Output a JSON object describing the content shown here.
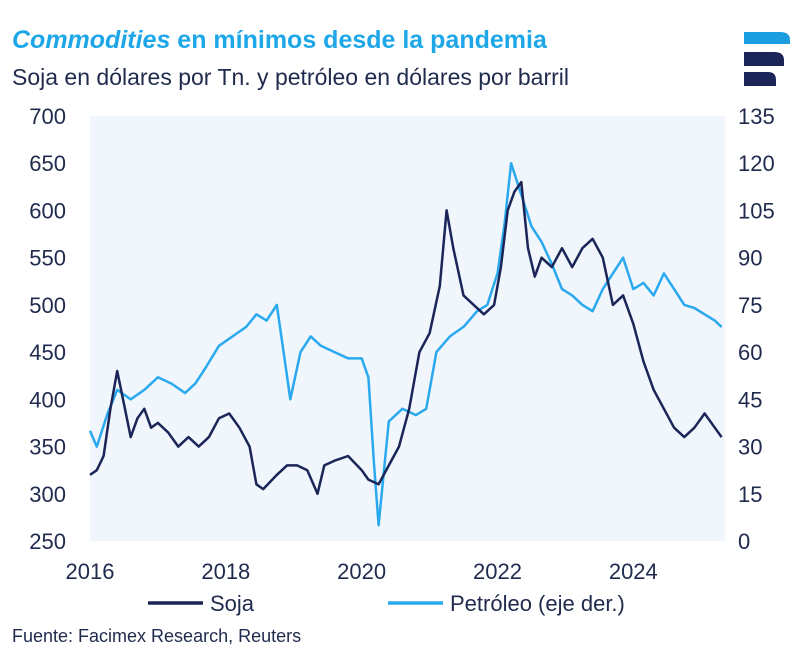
{
  "header": {
    "title_em": "Commodities",
    "title_rest": " en mínimos desde la pandemia",
    "subtitle": "Soja en dólares por Tn. y petróleo en dólares por barril"
  },
  "footer": {
    "source": "Fuente: Facimex Research, Reuters"
  },
  "logo": {
    "icon": "facimex-logo-icon"
  },
  "colors": {
    "soja": "#1b2557",
    "petroleo": "#2aa9ef",
    "plot_bg": "#f0f6fc",
    "text": "#1f2a4d"
  },
  "chart_data": {
    "type": "line",
    "title": "Commodities en mínimos desde la pandemia",
    "subtitle": "Soja en dólares por Tn. y petróleo en dólares por barril",
    "xlim": [
      2016,
      2025.35
    ],
    "x_ticks": [
      2016,
      2018,
      2020,
      2022,
      2024
    ],
    "x_tick_labels": [
      "2016",
      "2018",
      "2020",
      "2022",
      "2024"
    ],
    "y_left": {
      "range": [
        250,
        700
      ],
      "ticks": [
        250,
        300,
        350,
        400,
        450,
        500,
        550,
        600,
        650,
        700
      ],
      "tick_labels": [
        "250",
        "300",
        "350",
        "400",
        "450",
        "500",
        "550",
        "600",
        "650",
        "700"
      ]
    },
    "y_right": {
      "range": [
        0,
        135
      ],
      "ticks": [
        0,
        15,
        30,
        45,
        60,
        75,
        90,
        105,
        120,
        135
      ],
      "tick_labels": [
        "0",
        "15",
        "30",
        "45",
        "60",
        "75",
        "90",
        "105",
        "120",
        "135"
      ],
      "label": "eje der."
    },
    "legend": [
      "Soja",
      "Petróleo (eje der.)"
    ],
    "legend_position": "bottom",
    "series": [
      {
        "name": "Soja",
        "axis": "left",
        "x": [
          2016.0,
          2016.1,
          2016.2,
          2016.3,
          2016.4,
          2016.5,
          2016.6,
          2016.7,
          2016.8,
          2016.9,
          2017.0,
          2017.15,
          2017.3,
          2017.45,
          2017.6,
          2017.75,
          2017.9,
          2018.05,
          2018.2,
          2018.35,
          2018.45,
          2018.55,
          2018.75,
          2018.9,
          2019.05,
          2019.2,
          2019.35,
          2019.45,
          2019.6,
          2019.8,
          2020.0,
          2020.1,
          2020.25,
          2020.4,
          2020.55,
          2020.7,
          2020.85,
          2021.0,
          2021.15,
          2021.25,
          2021.35,
          2021.5,
          2021.65,
          2021.8,
          2021.95,
          2022.05,
          2022.15,
          2022.25,
          2022.35,
          2022.45,
          2022.55,
          2022.65,
          2022.8,
          2022.95,
          2023.1,
          2023.25,
          2023.4,
          2023.55,
          2023.7,
          2023.85,
          2024.0,
          2024.15,
          2024.3,
          2024.45,
          2024.6,
          2024.75,
          2024.9,
          2025.05,
          2025.2,
          2025.3
        ],
        "values": [
          320,
          325,
          340,
          390,
          430,
          395,
          360,
          380,
          390,
          370,
          375,
          365,
          350,
          360,
          350,
          360,
          380,
          385,
          370,
          350,
          310,
          305,
          320,
          330,
          330,
          325,
          300,
          330,
          335,
          340,
          325,
          315,
          310,
          330,
          350,
          390,
          450,
          470,
          520,
          600,
          560,
          510,
          500,
          490,
          500,
          540,
          600,
          620,
          630,
          560,
          530,
          550,
          540,
          560,
          540,
          560,
          570,
          550,
          500,
          510,
          480,
          440,
          410,
          390,
          370,
          360,
          370,
          385,
          370,
          360
        ]
      },
      {
        "name": "Petróleo (eje der.)",
        "axis": "right",
        "x": [
          2016.0,
          2016.1,
          2016.25,
          2016.4,
          2016.6,
          2016.8,
          2017.0,
          2017.2,
          2017.4,
          2017.55,
          2017.7,
          2017.9,
          2018.1,
          2018.3,
          2018.45,
          2018.6,
          2018.75,
          2018.85,
          2018.95,
          2019.1,
          2019.25,
          2019.4,
          2019.6,
          2019.8,
          2020.0,
          2020.1,
          2020.18,
          2020.25,
          2020.4,
          2020.6,
          2020.8,
          2020.95,
          2021.1,
          2021.3,
          2021.5,
          2021.7,
          2021.85,
          2022.0,
          2022.1,
          2022.2,
          2022.35,
          2022.5,
          2022.65,
          2022.8,
          2022.95,
          2023.1,
          2023.25,
          2023.4,
          2023.55,
          2023.7,
          2023.85,
          2024.0,
          2024.15,
          2024.3,
          2024.45,
          2024.6,
          2024.75,
          2024.9,
          2025.05,
          2025.2,
          2025.3
        ],
        "values": [
          35,
          30,
          40,
          48,
          45,
          48,
          52,
          50,
          47,
          50,
          55,
          62,
          65,
          68,
          72,
          70,
          75,
          60,
          45,
          60,
          65,
          62,
          60,
          58,
          58,
          52,
          25,
          5,
          38,
          42,
          40,
          42,
          60,
          65,
          68,
          73,
          75,
          85,
          100,
          120,
          110,
          100,
          95,
          88,
          80,
          78,
          75,
          73,
          80,
          85,
          90,
          80,
          82,
          78,
          85,
          80,
          75,
          74,
          72,
          70,
          68
        ]
      }
    ]
  }
}
